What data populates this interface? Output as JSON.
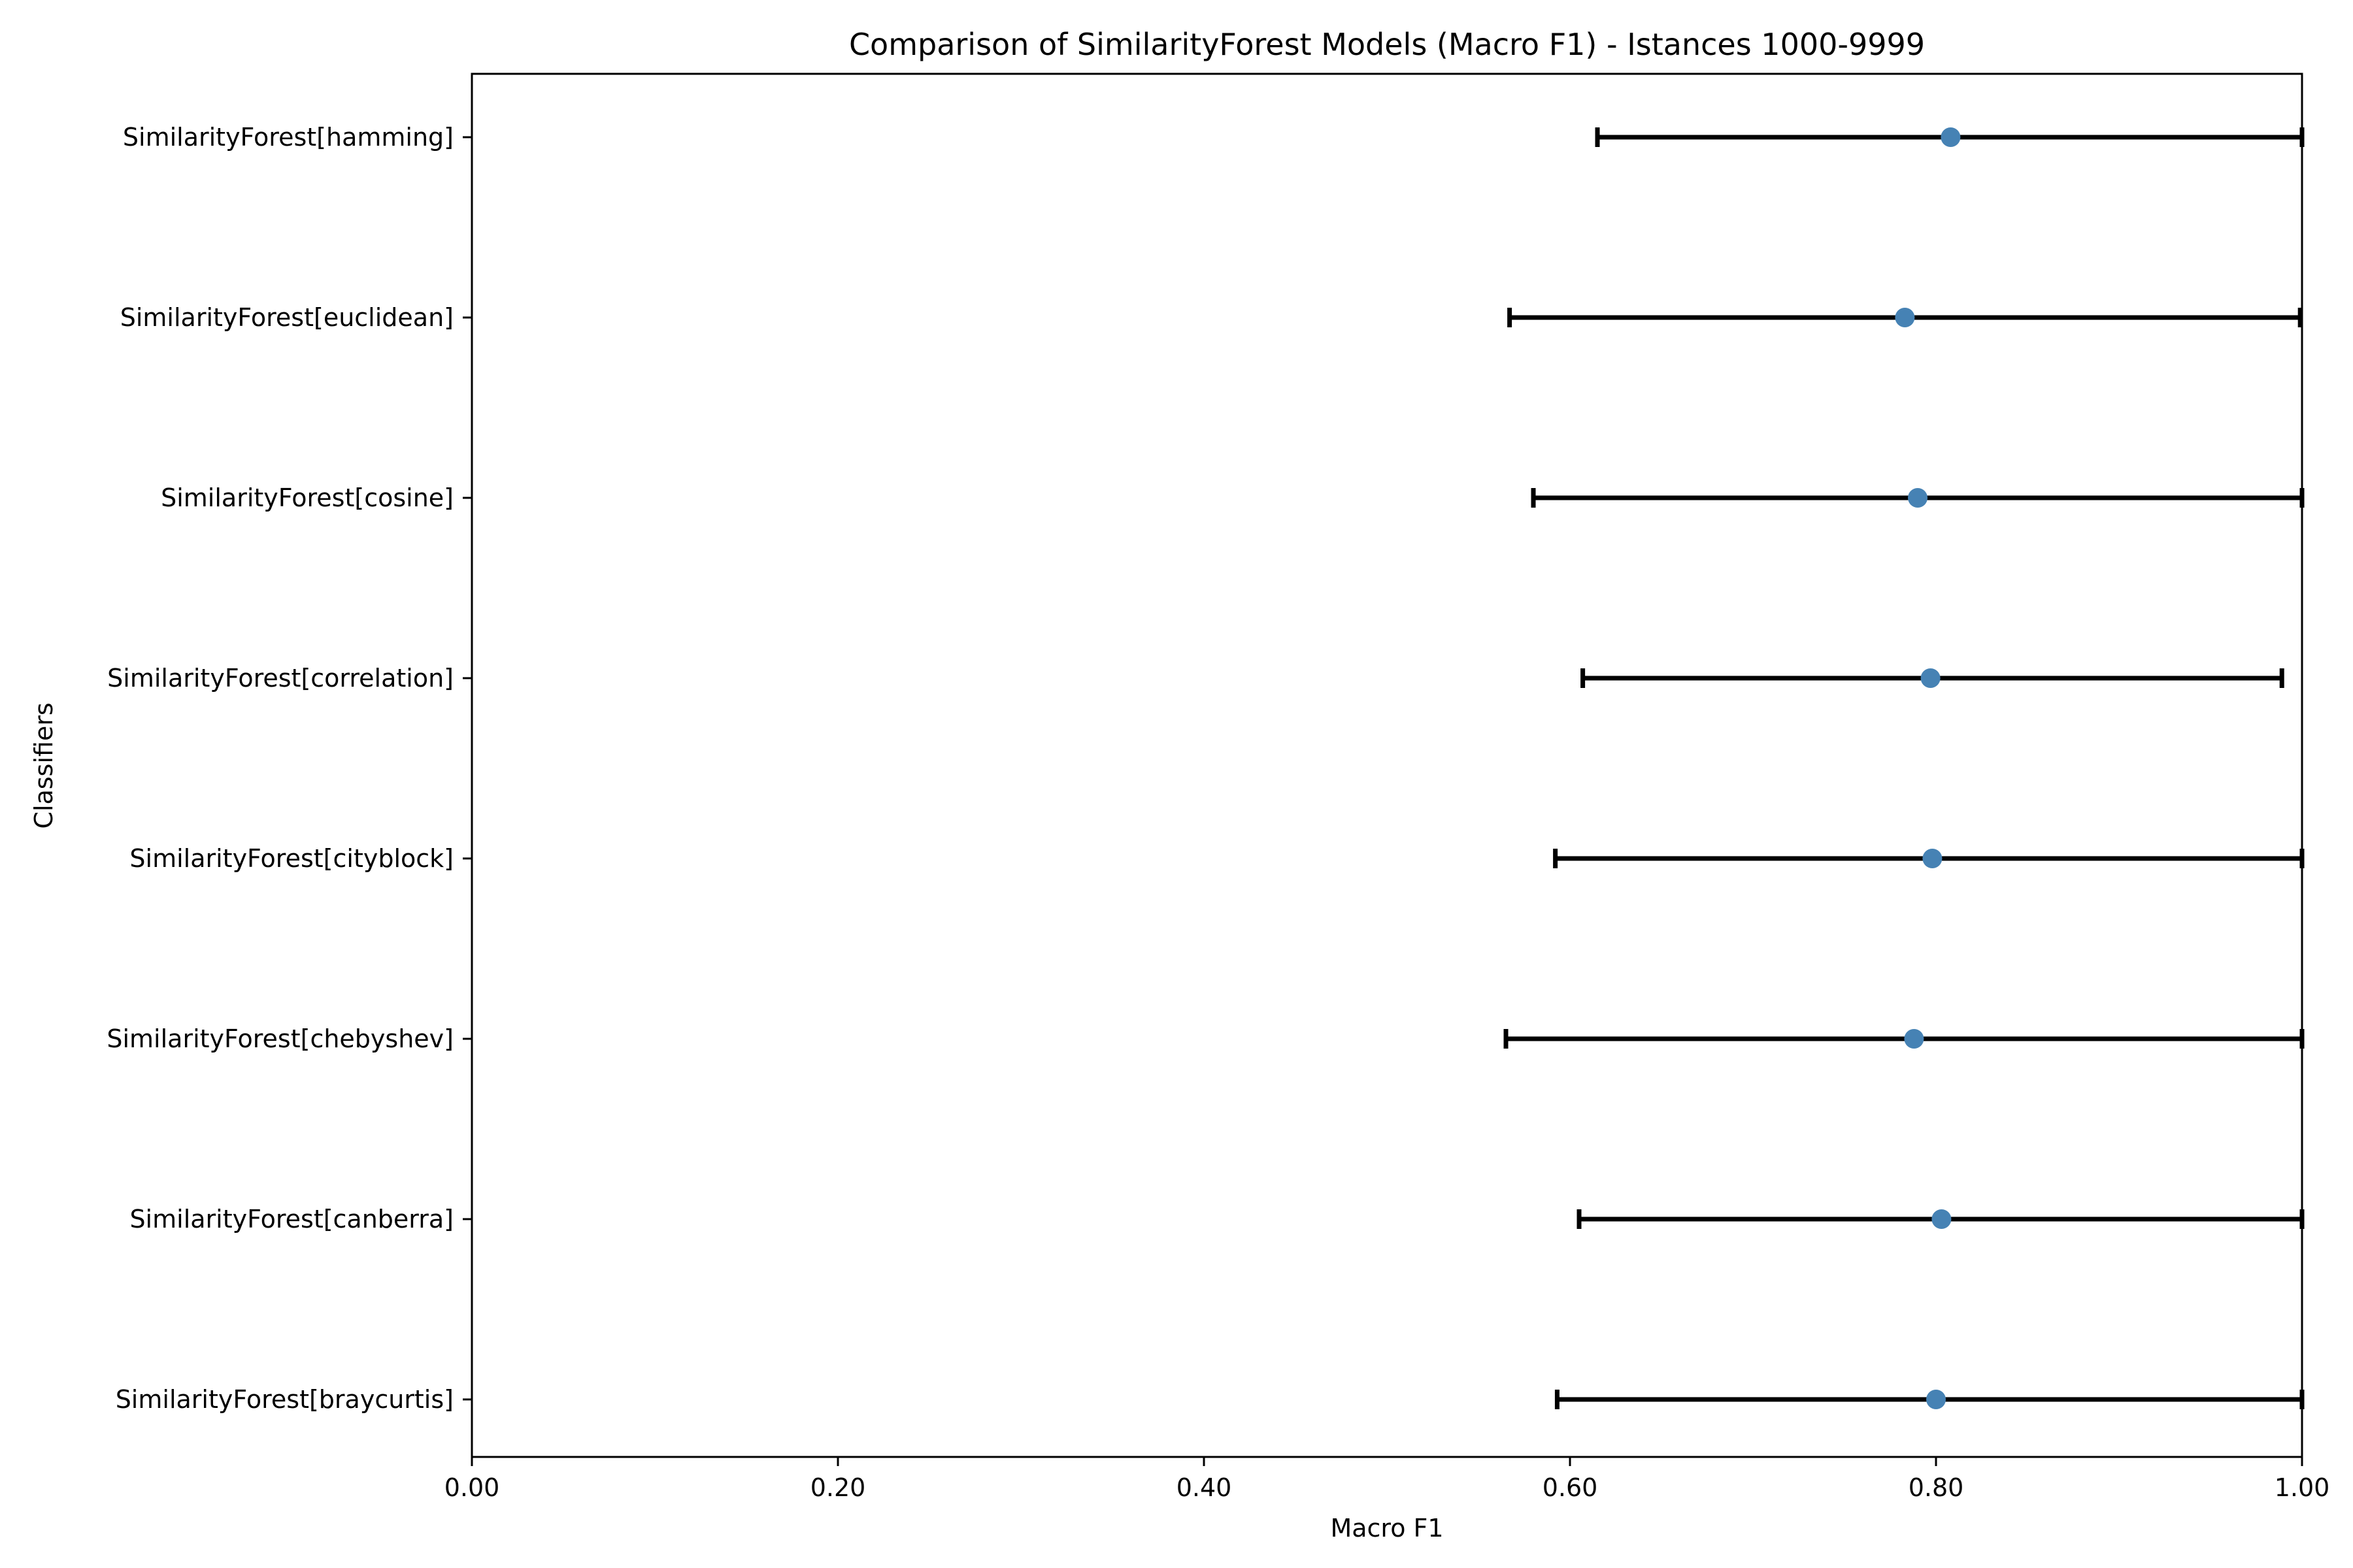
{
  "chart_data": {
    "type": "errorbar",
    "orientation": "horizontal",
    "title": "Comparison of SimilarityForest Models (Macro F1) - Istances 1000-9999",
    "xlabel": "Macro F1",
    "ylabel": "Classifiers",
    "xlim": [
      0.0,
      1.0
    ],
    "xticks": [
      0.0,
      0.2,
      0.4,
      0.6,
      0.8,
      1.0
    ],
    "xtick_labels": [
      "0.00",
      "0.20",
      "0.40",
      "0.60",
      "0.80",
      "1.00"
    ],
    "grid": false,
    "marker_color": "#4682b4",
    "errorbar_color": "#000000",
    "categories": [
      "SimilarityForest[hamming]",
      "SimilarityForest[euclidean]",
      "SimilarityForest[cosine]",
      "SimilarityForest[correlation]",
      "SimilarityForest[cityblock]",
      "SimilarityForest[chebyshev]",
      "SimilarityForest[canberra]",
      "SimilarityForest[braycurtis]"
    ],
    "values": [
      0.808,
      0.783,
      0.79,
      0.797,
      0.798,
      0.788,
      0.803,
      0.8
    ],
    "lower": [
      0.615,
      0.567,
      0.58,
      0.607,
      0.592,
      0.565,
      0.605,
      0.593
    ],
    "upper": [
      1.0,
      0.999,
      1.0,
      0.989,
      1.0,
      1.0,
      1.0,
      1.0
    ]
  }
}
